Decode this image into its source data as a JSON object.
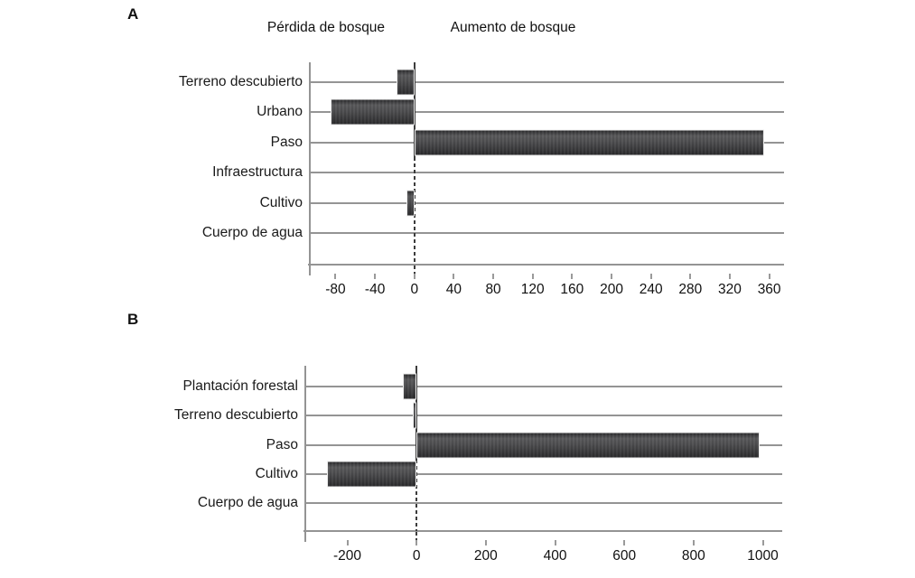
{
  "figure": {
    "background": "#ffffff",
    "text_color": "#1a1a1a",
    "grid_color": "#949494",
    "bar_color": "#454547",
    "zero_line_color": "#3c3c3c"
  },
  "chart_data": [
    {
      "type": "bar",
      "orientation": "horizontal",
      "panel_label": "A",
      "header_left": "Pérdida de bosque",
      "header_right": "Aumento de bosque",
      "categories": [
        "Terreno descubierto",
        "Urbano",
        "Paso",
        "Infraestructura",
        "Cultivo",
        "Cuerpo de agua"
      ],
      "values": [
        -18,
        -85,
        355,
        0,
        -8,
        0
      ],
      "x_ticks": [
        -80,
        -40,
        0,
        40,
        80,
        120,
        160,
        200,
        240,
        280,
        320,
        360
      ],
      "xlim": [
        -107,
        375
      ],
      "ylabel": "",
      "xlabel": "",
      "legend": "none",
      "grid": "horizontal category lines + dashed zero line"
    },
    {
      "type": "bar",
      "orientation": "horizontal",
      "panel_label": "B",
      "header_left": "",
      "header_right": "",
      "categories": [
        "Plantación forestal",
        "Terreno descubierto",
        "Paso",
        "Cultivo",
        "Cuerpo de agua"
      ],
      "values": [
        -40,
        -10,
        990,
        -260,
        0
      ],
      "x_ticks": [
        -200,
        0,
        200,
        400,
        600,
        800,
        1000
      ],
      "xlim": [
        -324,
        1056
      ],
      "ylabel": "",
      "xlabel": "",
      "legend": "none",
      "grid": "horizontal category lines + dashed zero line"
    }
  ]
}
